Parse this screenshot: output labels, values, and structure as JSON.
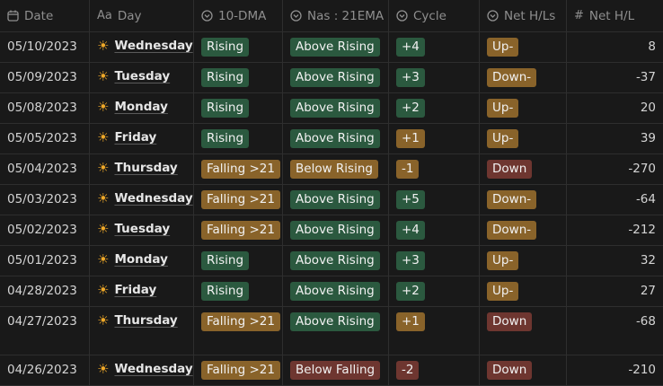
{
  "colors": {
    "green": "#2b593f",
    "orange": "#89632a",
    "red": "#6e3630"
  },
  "headers": [
    {
      "icon": "calendar-icon",
      "label": "Date"
    },
    {
      "icon": "text-icon",
      "label": "Day",
      "glyph": "Aa"
    },
    {
      "icon": "select-icon",
      "label": "10-DMA"
    },
    {
      "icon": "select-icon",
      "label": "Nas : 21EMA"
    },
    {
      "icon": "select-icon",
      "label": "Cycle"
    },
    {
      "icon": "select-icon",
      "label": "Net H/Ls"
    },
    {
      "icon": "number-icon",
      "label": "Net H/L",
      "glyph": "#"
    }
  ],
  "rows": [
    {
      "date": "05/10/2023",
      "day": "Wednesday",
      "dma": {
        "text": "Rising",
        "color": "green"
      },
      "nas": {
        "text": "Above Rising",
        "color": "green"
      },
      "cycle": {
        "text": "+4",
        "color": "green"
      },
      "net": {
        "text": "Up-",
        "color": "orange"
      },
      "num": "8"
    },
    {
      "date": "05/09/2023",
      "day": "Tuesday",
      "dma": {
        "text": "Rising",
        "color": "green"
      },
      "nas": {
        "text": "Above Rising",
        "color": "green"
      },
      "cycle": {
        "text": "+3",
        "color": "green"
      },
      "net": {
        "text": "Down-",
        "color": "orange"
      },
      "num": "-37"
    },
    {
      "date": "05/08/2023",
      "day": "Monday",
      "dma": {
        "text": "Rising",
        "color": "green"
      },
      "nas": {
        "text": "Above Rising",
        "color": "green"
      },
      "cycle": {
        "text": "+2",
        "color": "green"
      },
      "net": {
        "text": "Up-",
        "color": "orange"
      },
      "num": "20"
    },
    {
      "date": "05/05/2023",
      "day": "Friday",
      "dma": {
        "text": "Rising",
        "color": "green"
      },
      "nas": {
        "text": "Above Rising",
        "color": "green"
      },
      "cycle": {
        "text": "+1",
        "color": "orange"
      },
      "net": {
        "text": "Up-",
        "color": "orange"
      },
      "num": "39"
    },
    {
      "date": "05/04/2023",
      "day": "Thursday",
      "dma": {
        "text": "Falling >21",
        "color": "orange"
      },
      "nas": {
        "text": "Below Rising",
        "color": "orange"
      },
      "cycle": {
        "text": "-1",
        "color": "orange"
      },
      "net": {
        "text": "Down",
        "color": "red"
      },
      "num": "-270"
    },
    {
      "date": "05/03/2023",
      "day": "Wednesday",
      "dma": {
        "text": "Falling >21",
        "color": "orange"
      },
      "nas": {
        "text": "Above Rising",
        "color": "green"
      },
      "cycle": {
        "text": "+5",
        "color": "green"
      },
      "net": {
        "text": "Down-",
        "color": "orange"
      },
      "num": "-64"
    },
    {
      "date": "05/02/2023",
      "day": "Tuesday",
      "dma": {
        "text": "Falling >21",
        "color": "orange"
      },
      "nas": {
        "text": "Above Rising",
        "color": "green"
      },
      "cycle": {
        "text": "+4",
        "color": "green"
      },
      "net": {
        "text": "Down-",
        "color": "orange"
      },
      "num": "-212"
    },
    {
      "date": "05/01/2023",
      "day": "Monday",
      "dma": {
        "text": "Rising",
        "color": "green"
      },
      "nas": {
        "text": "Above Rising",
        "color": "green"
      },
      "cycle": {
        "text": "+3",
        "color": "green"
      },
      "net": {
        "text": "Up-",
        "color": "orange"
      },
      "num": "32"
    },
    {
      "date": "04/28/2023",
      "day": "Friday",
      "dma": {
        "text": "Rising",
        "color": "green"
      },
      "nas": {
        "text": "Above Rising",
        "color": "green"
      },
      "cycle": {
        "text": "+2",
        "color": "green"
      },
      "net": {
        "text": "Up-",
        "color": "orange"
      },
      "num": "27"
    },
    {
      "date": "04/27/2023",
      "day": "Thursday",
      "dma": {
        "text": "Falling >21",
        "color": "orange"
      },
      "nas": {
        "text": "Above Rising",
        "color": "green"
      },
      "cycle": {
        "text": "+1",
        "color": "orange"
      },
      "net": {
        "text": "Down",
        "color": "red"
      },
      "num": "-68"
    },
    {
      "date": "04/26/2023",
      "day": "Wednesday",
      "dma": {
        "text": "Falling >21",
        "color": "orange"
      },
      "nas": {
        "text": "Below Falling",
        "color": "red"
      },
      "cycle": {
        "text": "-2",
        "color": "red"
      },
      "net": {
        "text": "Down",
        "color": "red"
      },
      "num": "-210"
    }
  ]
}
